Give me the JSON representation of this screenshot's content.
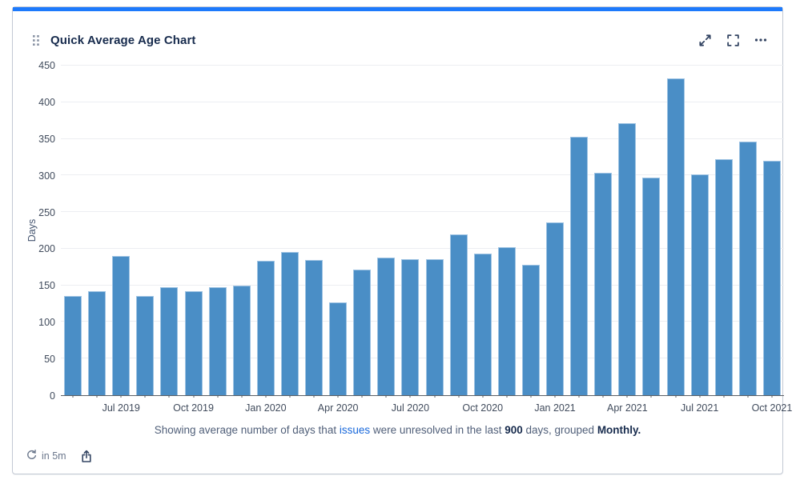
{
  "card": {
    "title": "Quick Average Age Chart",
    "accent_color": "#1d7afc",
    "caption": {
      "part1": "Showing average number of days that ",
      "link": "issues",
      "part2": " were unresolved in the last ",
      "bold_days": "900",
      "part3": " days, grouped ",
      "bold_group": "Monthly."
    },
    "refresh_label": "in 5m"
  },
  "chart_data": {
    "type": "bar",
    "title": "Quick Average Age Chart",
    "xlabel": "",
    "ylabel": "Days",
    "ylim": [
      0,
      450
    ],
    "ytick_labels": [
      0,
      50,
      100,
      150,
      200,
      250,
      300,
      350,
      400,
      450
    ],
    "grid": true,
    "bar_color": "#4a8ec6",
    "bar_edge_color": "#9ec3e3",
    "x_tick_every": 3,
    "categories": [
      "May 2019",
      "Jun 2019",
      "Jul 2019",
      "Aug 2019",
      "Sep 2019",
      "Oct 2019",
      "Nov 2019",
      "Dec 2019",
      "Jan 2020",
      "Feb 2020",
      "Mar 2020",
      "Apr 2020",
      "May 2020",
      "Jun 2020",
      "Jul 2020",
      "Aug 2020",
      "Sep 2020",
      "Oct 2020",
      "Nov 2020",
      "Dec 2020",
      "Jan 2021",
      "Feb 2021",
      "Mar 2021",
      "Apr 2021",
      "May 2021",
      "Jun 2021",
      "Jul 2021",
      "Aug 2021",
      "Sep 2021",
      "Oct 2021"
    ],
    "values": [
      136,
      142,
      190,
      136,
      147,
      142,
      148,
      150,
      184,
      196,
      185,
      127,
      172,
      188,
      186,
      186,
      220,
      193,
      202,
      178,
      236,
      353,
      304,
      371,
      297,
      432,
      302,
      322,
      346,
      320
    ],
    "visible_x_tick_labels": [
      "Jul 2019",
      "Oct 2019",
      "Jan 2020",
      "Apr 2020",
      "Jul 2020",
      "Oct 2020",
      "Jan 2021",
      "Apr 2021",
      "Jul 2021",
      "Oct 2021"
    ]
  },
  "colors": {
    "title_text": "#172b4d",
    "icon": "#344563",
    "axis_text": "#404b5c",
    "gridline": "#eceef2",
    "caption_text": "#505f79",
    "link": "#1868db",
    "muted_text": "#6b778c",
    "card_border": "#c3c9d4"
  }
}
